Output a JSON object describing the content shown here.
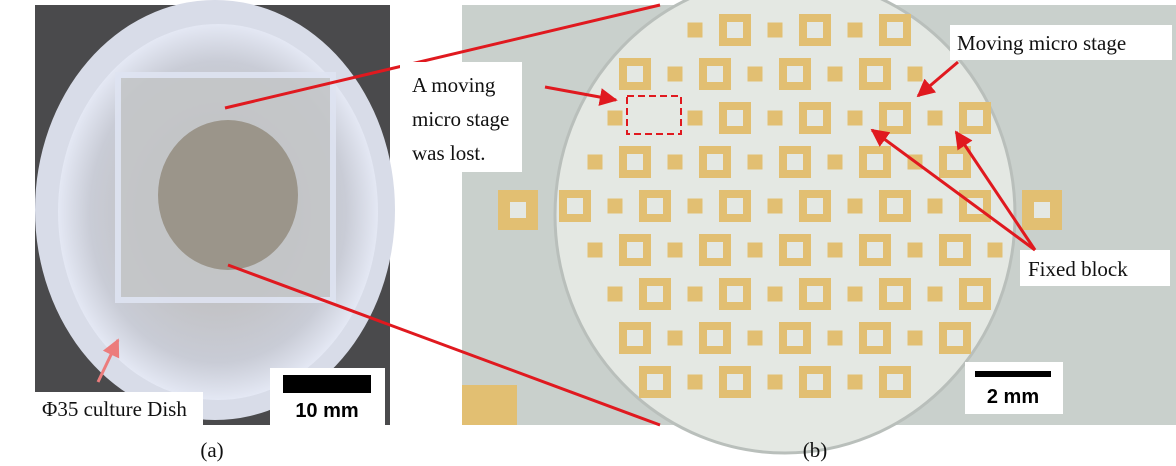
{
  "panels": [
    {
      "label": "(a)",
      "annotations": {
        "dish": "Φ35 culture Dish",
        "scale_bar": "10 mm"
      }
    },
    {
      "label": "(b)",
      "annotations": {
        "lost": [
          "A moving",
          "micro stage",
          "was lost."
        ],
        "moving": "Moving micro stage",
        "fixed": "Fixed block",
        "scale_bar": "2 mm"
      }
    }
  ]
}
